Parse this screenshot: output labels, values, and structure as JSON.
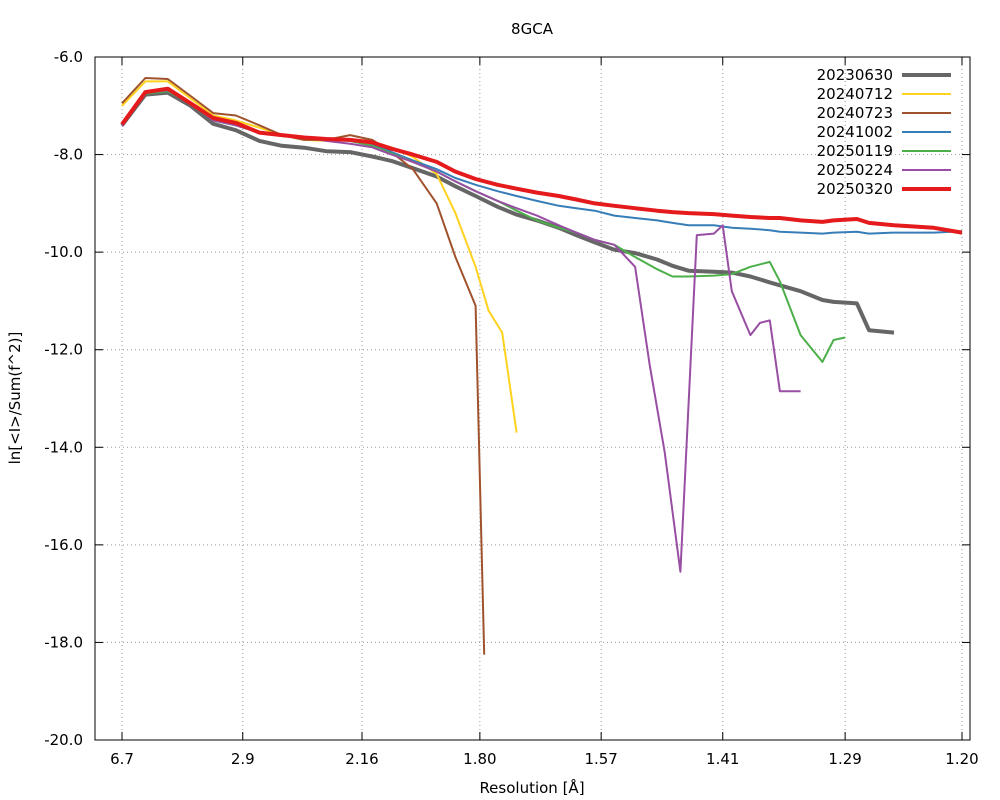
{
  "chart_data": {
    "type": "line",
    "title": "8GCA",
    "xlabel": "Resolution [Å]",
    "ylabel": "ln[<I>/Sum(f^2)]",
    "x_scale": "1/d^2",
    "xlim_resolution": [
      6.7,
      1.2
    ],
    "ylim": [
      -20.0,
      -6.0
    ],
    "x_tick_labels": [
      "6.7",
      "2.9",
      "2.16",
      "1.80",
      "1.57",
      "1.41",
      "1.29",
      "1.20"
    ],
    "y_tick_labels": [
      "-6.0",
      "-8.0",
      "-10.0",
      "-12.0",
      "-14.0",
      "-16.0",
      "-18.0",
      "-20.0"
    ],
    "grid": true,
    "legend_position": "top-right",
    "series": [
      {
        "name": "20230630",
        "color": "#666666",
        "width": 4,
        "resolution": [
          6.7,
          4.94,
          4.12,
          3.6,
          3.24,
          2.97,
          2.75,
          2.58,
          2.44,
          2.32,
          2.21,
          2.12,
          2.05,
          1.98,
          1.91,
          1.86,
          1.81,
          1.76,
          1.72,
          1.68,
          1.64,
          1.61,
          1.58,
          1.55,
          1.52,
          1.49,
          1.47,
          1.45,
          1.42,
          1.4,
          1.38,
          1.36,
          1.35,
          1.33,
          1.31,
          1.3,
          1.28,
          1.27,
          1.25
        ],
        "values": [
          -7.4,
          -6.77,
          -6.73,
          -7.0,
          -7.37,
          -7.5,
          -7.72,
          -7.82,
          -7.86,
          -7.93,
          -7.95,
          -8.04,
          -8.13,
          -8.28,
          -8.45,
          -8.65,
          -8.85,
          -9.07,
          -9.23,
          -9.35,
          -9.5,
          -9.65,
          -9.8,
          -9.95,
          -10.02,
          -10.15,
          -10.28,
          -10.38,
          -10.4,
          -10.42,
          -10.5,
          -10.62,
          -10.68,
          -10.8,
          -10.98,
          -11.02,
          -11.05,
          -11.6,
          -11.65
        ]
      },
      {
        "name": "20240712",
        "color": "#FFD21F",
        "width": 2,
        "resolution": [
          6.7,
          4.94,
          4.12,
          3.6,
          3.24,
          2.97,
          2.75,
          2.58,
          2.44,
          2.32,
          2.21,
          2.12,
          2.05,
          1.98,
          1.91,
          1.86,
          1.81,
          1.78,
          1.75,
          1.72
        ],
        "values": [
          -7.0,
          -6.5,
          -6.5,
          -6.85,
          -7.2,
          -7.3,
          -7.45,
          -7.6,
          -7.7,
          -7.72,
          -7.7,
          -7.75,
          -7.85,
          -8.05,
          -8.4,
          -9.2,
          -10.3,
          -11.2,
          -11.65,
          -13.7
        ]
      },
      {
        "name": "20240723",
        "color": "#A0522D",
        "width": 2,
        "resolution": [
          6.7,
          4.94,
          4.12,
          3.6,
          3.24,
          2.97,
          2.75,
          2.58,
          2.44,
          2.32,
          2.21,
          2.12,
          2.05,
          1.98,
          1.91,
          1.86,
          1.81,
          1.79
        ],
        "values": [
          -6.95,
          -6.43,
          -6.45,
          -6.8,
          -7.15,
          -7.2,
          -7.4,
          -7.6,
          -7.7,
          -7.7,
          -7.6,
          -7.7,
          -7.95,
          -8.3,
          -9.0,
          -10.1,
          -11.1,
          -18.25
        ]
      },
      {
        "name": "20241002",
        "color": "#377EB8",
        "width": 2,
        "resolution": [
          6.7,
          4.94,
          4.12,
          3.6,
          3.24,
          2.97,
          2.75,
          2.58,
          2.44,
          2.32,
          2.21,
          2.12,
          2.05,
          1.98,
          1.91,
          1.86,
          1.81,
          1.76,
          1.72,
          1.68,
          1.64,
          1.61,
          1.58,
          1.55,
          1.52,
          1.49,
          1.47,
          1.45,
          1.42,
          1.4,
          1.38,
          1.36,
          1.35,
          1.33,
          1.31,
          1.3,
          1.28,
          1.27,
          1.25,
          1.22,
          1.2
        ],
        "values": [
          -7.4,
          -6.75,
          -6.7,
          -6.95,
          -7.3,
          -7.4,
          -7.55,
          -7.62,
          -7.65,
          -7.68,
          -7.72,
          -7.8,
          -7.95,
          -8.12,
          -8.3,
          -8.48,
          -8.62,
          -8.75,
          -8.85,
          -8.95,
          -9.05,
          -9.1,
          -9.15,
          -9.25,
          -9.3,
          -9.35,
          -9.4,
          -9.45,
          -9.45,
          -9.5,
          -9.52,
          -9.55,
          -9.58,
          -9.6,
          -9.62,
          -9.6,
          -9.58,
          -9.62,
          -9.6,
          -9.6,
          -9.57
        ]
      },
      {
        "name": "20250119",
        "color": "#4DAF4A",
        "width": 2,
        "resolution": [
          6.7,
          4.94,
          4.12,
          3.6,
          3.24,
          2.97,
          2.75,
          2.58,
          2.44,
          2.32,
          2.21,
          2.12,
          2.05,
          1.98,
          1.91,
          1.86,
          1.81,
          1.76,
          1.72,
          1.68,
          1.64,
          1.61,
          1.58,
          1.55,
          1.52,
          1.49,
          1.47,
          1.45,
          1.42,
          1.4,
          1.38,
          1.36,
          1.35,
          1.33,
          1.31,
          1.3,
          1.29
        ],
        "values": [
          -7.4,
          -6.75,
          -6.7,
          -6.95,
          -7.3,
          -7.4,
          -7.55,
          -7.62,
          -7.65,
          -7.7,
          -7.72,
          -7.82,
          -7.98,
          -8.15,
          -8.35,
          -8.55,
          -8.75,
          -8.95,
          -9.15,
          -9.35,
          -9.5,
          -9.6,
          -9.75,
          -9.85,
          -10.1,
          -10.35,
          -10.5,
          -10.5,
          -10.48,
          -10.45,
          -10.3,
          -10.2,
          -10.6,
          -11.7,
          -12.25,
          -11.8,
          -11.75
        ]
      },
      {
        "name": "20250224",
        "color": "#984EA3",
        "width": 2,
        "resolution": [
          6.7,
          4.94,
          4.12,
          3.6,
          3.24,
          2.97,
          2.75,
          2.58,
          2.44,
          2.32,
          2.21,
          2.12,
          2.05,
          1.98,
          1.91,
          1.86,
          1.81,
          1.76,
          1.72,
          1.68,
          1.64,
          1.61,
          1.58,
          1.55,
          1.52,
          1.5,
          1.48,
          1.46,
          1.44,
          1.42,
          1.41,
          1.4,
          1.38,
          1.37,
          1.36,
          1.35,
          1.34,
          1.33
        ],
        "values": [
          -7.42,
          -6.73,
          -6.68,
          -6.95,
          -7.3,
          -7.4,
          -7.55,
          -7.62,
          -7.65,
          -7.72,
          -7.78,
          -7.85,
          -8.0,
          -8.15,
          -8.35,
          -8.55,
          -8.75,
          -8.95,
          -9.1,
          -9.25,
          -9.45,
          -9.6,
          -9.75,
          -9.85,
          -10.3,
          -12.3,
          -14.1,
          -16.55,
          -9.65,
          -9.62,
          -9.45,
          -10.8,
          -11.7,
          -11.45,
          -11.4,
          -12.85,
          -12.85,
          -12.85
        ]
      },
      {
        "name": "20250320",
        "color": "#E41A1C",
        "width": 4,
        "resolution": [
          6.7,
          4.94,
          4.12,
          3.6,
          3.24,
          2.97,
          2.75,
          2.58,
          2.44,
          2.32,
          2.21,
          2.12,
          2.05,
          1.98,
          1.91,
          1.86,
          1.81,
          1.76,
          1.72,
          1.68,
          1.64,
          1.61,
          1.58,
          1.55,
          1.52,
          1.49,
          1.47,
          1.45,
          1.42,
          1.4,
          1.38,
          1.36,
          1.35,
          1.33,
          1.31,
          1.3,
          1.28,
          1.27,
          1.25,
          1.22,
          1.2
        ],
        "values": [
          -7.38,
          -6.72,
          -6.65,
          -6.95,
          -7.25,
          -7.35,
          -7.55,
          -7.6,
          -7.65,
          -7.68,
          -7.7,
          -7.75,
          -7.88,
          -8.0,
          -8.15,
          -8.35,
          -8.5,
          -8.62,
          -8.7,
          -8.78,
          -8.85,
          -8.92,
          -9.0,
          -9.05,
          -9.1,
          -9.15,
          -9.18,
          -9.2,
          -9.22,
          -9.25,
          -9.28,
          -9.3,
          -9.3,
          -9.35,
          -9.38,
          -9.35,
          -9.32,
          -9.4,
          -9.45,
          -9.5,
          -9.6
        ]
      }
    ]
  }
}
